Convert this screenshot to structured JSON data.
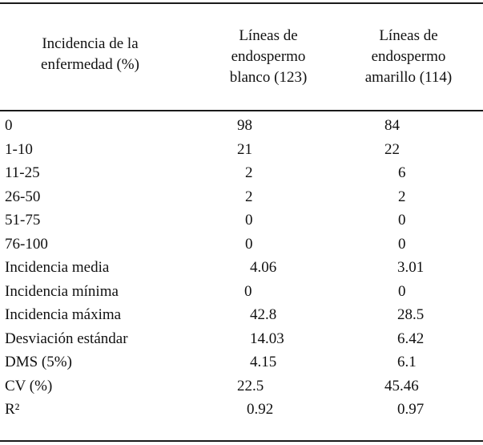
{
  "table": {
    "headers": [
      [
        "Incidencia de la",
        "enfermedad (%)"
      ],
      [
        "Líneas de",
        "endospermo",
        "blanco (123)"
      ],
      [
        "Líneas de",
        "endospermo",
        "amarillo (114)"
      ]
    ],
    "rows": [
      {
        "label": "0",
        "blanco": "98",
        "amarillo": "84"
      },
      {
        "label": "1-10",
        "blanco": "21",
        "amarillo": "22"
      },
      {
        "label": "11-25",
        "blanco": "2",
        "amarillo": "6"
      },
      {
        "label": "26-50",
        "blanco": "2",
        "amarillo": "2"
      },
      {
        "label": "51-75",
        "blanco": "0",
        "amarillo": "0"
      },
      {
        "label": "76-100",
        "blanco": "0",
        "amarillo": "0"
      },
      {
        "label": "Incidencia media",
        "blanco": "4.06",
        "amarillo": "3.01"
      },
      {
        "label": "Incidencia mínima",
        "blanco": "0",
        "amarillo": "0"
      },
      {
        "label": "Incidencia máxima",
        "blanco": "42.8",
        "amarillo": "28.5"
      },
      {
        "label": "Desviación estándar",
        "blanco": "14.03",
        "amarillo": "6.42"
      },
      {
        "label": "DMS (5%)",
        "blanco": "4.15",
        "amarillo": "6.1"
      },
      {
        "label": "CV (%)",
        "blanco": "22.5",
        "amarillo": "45.46"
      },
      {
        "label": "R²",
        "blanco": "0.92",
        "amarillo": "0.97"
      }
    ]
  }
}
